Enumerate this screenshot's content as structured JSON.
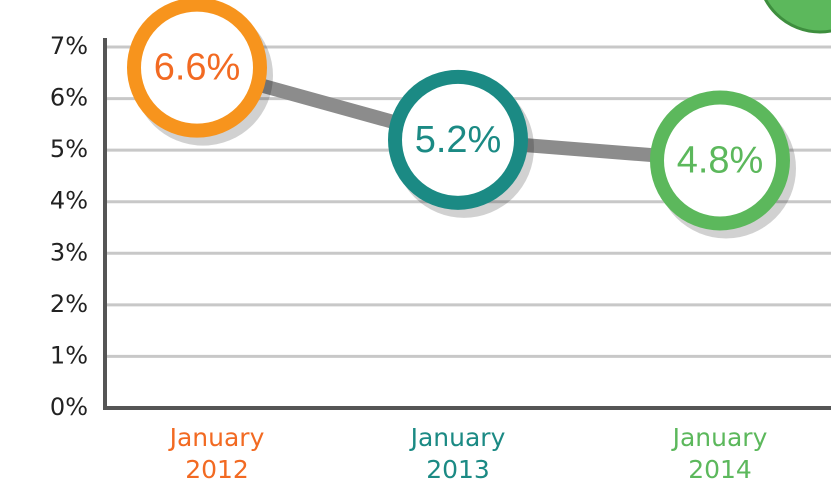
{
  "chart_data": {
    "type": "line",
    "categories": [
      "January 2012",
      "January 2013",
      "January 2014"
    ],
    "values": [
      6.6,
      5.2,
      4.8
    ],
    "value_labels": [
      "6.6%",
      "5.2%",
      "4.8%"
    ],
    "colors": [
      "#f7941d",
      "#1b8a84",
      "#5cb85c"
    ],
    "label_colors": [
      "#f26a22",
      "#1b8a84",
      "#5cb85c"
    ],
    "line_color": "#8c8c8c",
    "ylim": [
      0,
      7
    ],
    "yticks": [
      {
        "value": 0,
        "label": "0%"
      },
      {
        "value": 1,
        "label": "1%"
      },
      {
        "value": 2,
        "label": "2%"
      },
      {
        "value": 3,
        "label": "3%"
      },
      {
        "value": 4,
        "label": "4%"
      },
      {
        "value": 5,
        "label": "5%"
      },
      {
        "value": 6,
        "label": "6%"
      },
      {
        "value": 7,
        "label": "7%"
      }
    ],
    "grid": true
  }
}
